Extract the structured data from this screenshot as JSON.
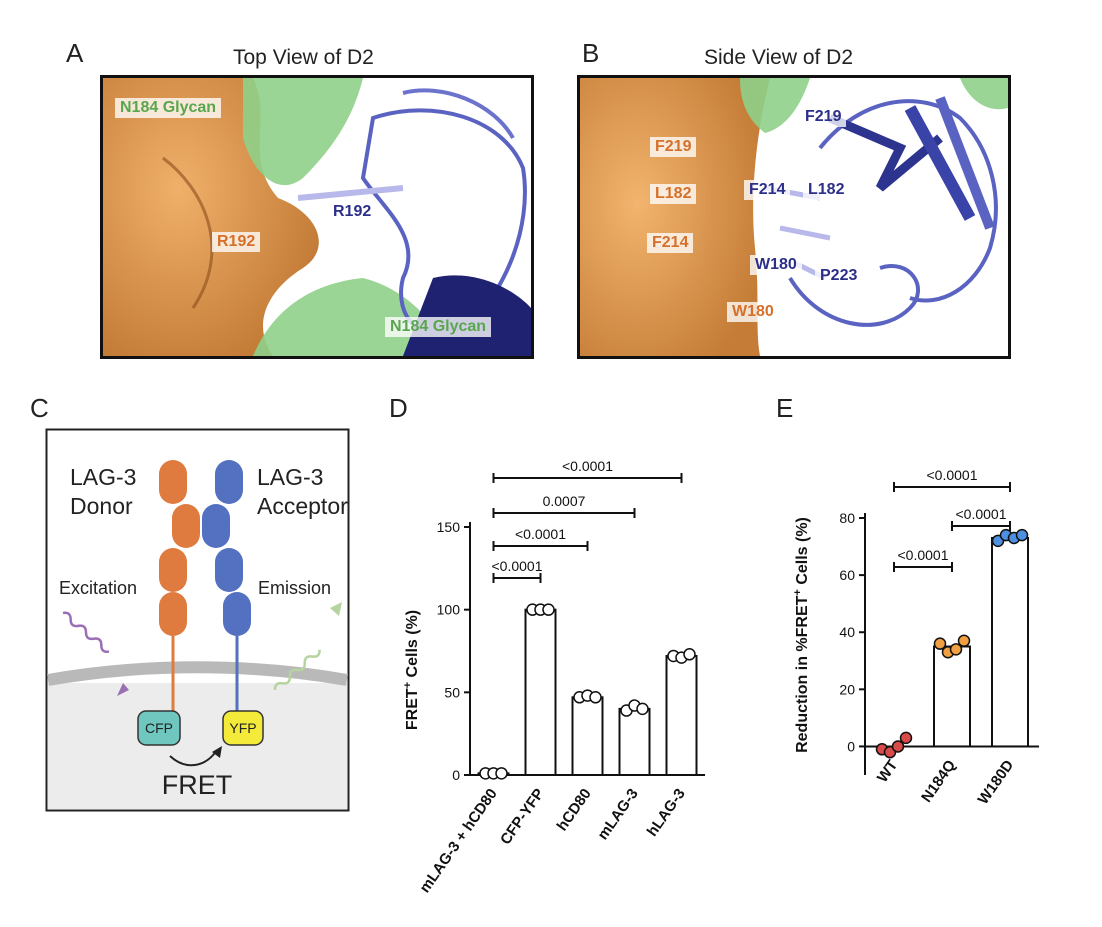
{
  "panel_a": {
    "letter": "A",
    "title": "Top View of D2",
    "labels": {
      "glycan_top": "N184 Glycan",
      "r192_blue": "R192",
      "r192_orange": "R192",
      "glycan_bottom": "N184 Glycan"
    }
  },
  "panel_b": {
    "letter": "B",
    "title": "Side View of D2",
    "labels": {
      "f219_blue": "F219",
      "f219_orange": "F219",
      "l182_orange": "L182",
      "f214_blue": "F214",
      "l182_blue": "L182",
      "f214_orange": "F214",
      "w180_blue": "W180",
      "p223_blue": "P223",
      "w180_orange": "W180"
    }
  },
  "panel_c": {
    "letter": "C",
    "donor": [
      "LAG-3",
      "Donor"
    ],
    "acceptor": [
      "LAG-3",
      "Acceptor"
    ],
    "excitation": "Excitation",
    "emission": "Emission",
    "cfp": "CFP",
    "yfp": "YFP",
    "fret": "FRET",
    "colors": {
      "donor": "#e07b3f",
      "acceptor": "#5470c0",
      "cfp": "#6fc7bf",
      "yfp": "#f4ea3a"
    }
  },
  "panel_d": {
    "letter": "D",
    "ylabel_main": "FRET",
    "ylabel_sup": "+",
    "ylabel_rest": " Cells (%)",
    "yticks": [
      "0",
      "50",
      "100",
      "150"
    ],
    "chart_data": {
      "type": "bar",
      "categories": [
        "mLAG-3 + hCD80",
        "CFP-YFP",
        "hCD80",
        "mLAG-3",
        "hLAG-3"
      ],
      "values": [
        1,
        100,
        47,
        40,
        72
      ],
      "points": [
        [
          1,
          1,
          1
        ],
        [
          100,
          100,
          100
        ],
        [
          47,
          48,
          47
        ],
        [
          39,
          42,
          40
        ],
        [
          72,
          71,
          73
        ]
      ],
      "ylabel": "FRET+ Cells (%)",
      "ylim": [
        0,
        150
      ],
      "comparisons": [
        {
          "from": 0,
          "to": 1,
          "p": "<0.0001"
        },
        {
          "from": 0,
          "to": 2,
          "p": "<0.0001"
        },
        {
          "from": 0,
          "to": 3,
          "p": "0.0007"
        },
        {
          "from": 0,
          "to": 4,
          "p": "<0.0001"
        }
      ]
    }
  },
  "panel_e": {
    "letter": "E",
    "ylabel_main": "Reduction in %FRET",
    "ylabel_sup": "+",
    "ylabel_rest": " Cells (%)",
    "yticks": [
      "0",
      "20",
      "40",
      "60",
      "80"
    ],
    "chart_data": {
      "type": "bar",
      "categories": [
        "WT",
        "N184Q",
        "W180D"
      ],
      "values": [
        0,
        35,
        73
      ],
      "points": [
        [
          -1,
          -2,
          0,
          3
        ],
        [
          36,
          33,
          34,
          37
        ],
        [
          72,
          74,
          73,
          74
        ]
      ],
      "point_colors": [
        "#d94a4a",
        "#f0a040",
        "#4d8fe0"
      ],
      "ylabel": "Reduction in %FRET+ Cells (%)",
      "ylim": [
        -10,
        80
      ],
      "comparisons": [
        {
          "from": 0,
          "to": 1,
          "p": "<0.0001"
        },
        {
          "from": 1,
          "to": 2,
          "p": "<0.0001"
        },
        {
          "from": 0,
          "to": 2,
          "p": "<0.0001"
        }
      ]
    }
  }
}
